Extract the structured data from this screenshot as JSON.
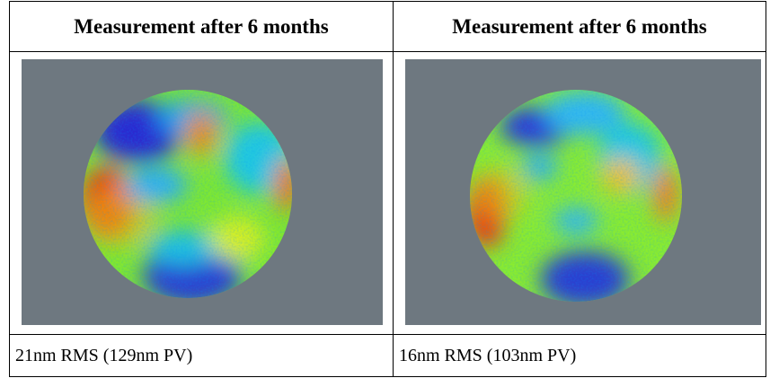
{
  "table": {
    "header": [
      "Measurement after 6 months",
      "Measurement after 6 months"
    ],
    "rows": [
      [
        "21nm RMS (129nm PV)",
        "16nm RMS (103nm PV)"
      ]
    ]
  }
}
